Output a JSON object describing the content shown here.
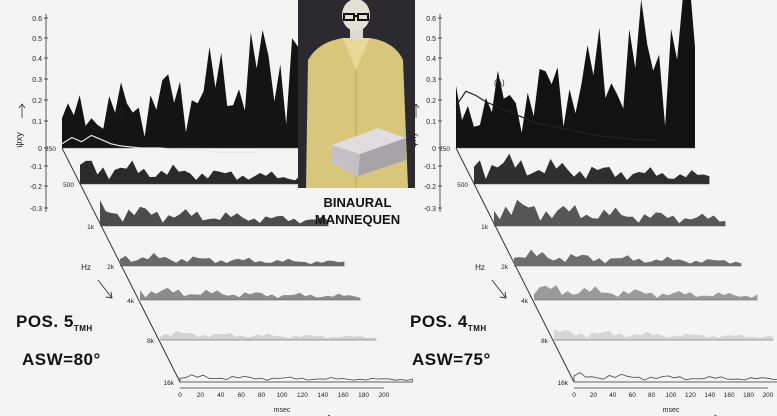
{
  "caption": {
    "line1": "BINAURAL",
    "line2": "MANNEQUEN"
  },
  "y_axis": {
    "ticks": [
      "0.6",
      "0.5",
      "0.4",
      "0.3",
      "0.2",
      "0.1",
      "0",
      "-0.1",
      "-0.2",
      "-0.3"
    ],
    "label": "ψxy"
  },
  "freq_axis": {
    "ticks": [
      "250",
      "500",
      "1k",
      "2k",
      "4k",
      "8k",
      "16k"
    ],
    "unit": "Hz"
  },
  "time_axis": {
    "ticks": [
      "0",
      "20",
      "40",
      "60",
      "80",
      "100",
      "120",
      "140",
      "160",
      "180",
      "200"
    ],
    "unit": "msec"
  },
  "curve_label": "(A)",
  "colors": {
    "background": "#f4f4f2",
    "ink": "#1a1a1a",
    "photo_bg": "#2c2a30",
    "jacket": "#d8c77a"
  },
  "chart_data": [
    {
      "type": "area",
      "panel": "left",
      "position": "POS. 5",
      "position_sub": "TMH",
      "asw": "ASW=80°",
      "bands": [
        "250",
        "500",
        "1k",
        "2k",
        "4k",
        "8k",
        "16k"
      ],
      "x_range_ms": [
        0,
        200
      ],
      "y_range": [
        -0.3,
        0.6
      ],
      "curve_A": {
        "name": "(A)",
        "x": [
          0,
          10,
          20,
          30,
          40,
          50,
          60,
          80,
          100,
          120,
          140,
          160,
          180,
          200
        ],
        "y": [
          0.02,
          0.05,
          0.03,
          0.06,
          0.04,
          0.02,
          0.01,
          0.0,
          0.0,
          -0.01,
          -0.01,
          -0.02,
          -0.02,
          -0.02
        ]
      }
    },
    {
      "type": "area",
      "panel": "right",
      "position": "POS. 4",
      "position_sub": "TMH",
      "asw": "ASW=75°",
      "bands": [
        "250",
        "500",
        "1k",
        "2k",
        "4k",
        "8k",
        "16k"
      ],
      "x_range_ms": [
        0,
        200
      ],
      "y_range": [
        -0.3,
        0.6
      ],
      "curve_A": {
        "name": "(A)",
        "x": [
          0,
          10,
          20,
          30,
          40,
          60,
          80,
          100,
          120,
          140,
          160,
          180,
          200
        ],
        "y": [
          0.2,
          0.27,
          0.25,
          0.22,
          0.2,
          0.16,
          0.12,
          0.1,
          0.08,
          0.06,
          0.05,
          0.04,
          0.04
        ]
      }
    }
  ]
}
